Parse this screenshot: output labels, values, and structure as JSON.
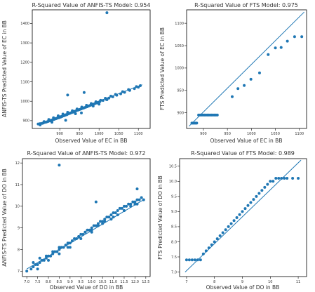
{
  "chart_data": [
    {
      "type": "scatter",
      "title": "R-Squared Value of ANFIS-TS Model: 0.954",
      "xlabel": "Observed Value of EC in BB",
      "ylabel": "ANFIS-TS Predicted Value of EC in BB",
      "xlim": [
        830,
        1130
      ],
      "ylim": [
        860,
        1470
      ],
      "xticks": [
        900,
        950,
        1000,
        1050,
        1100
      ],
      "xtick_labels": [
        "900",
        "950",
        "1000",
        "1050",
        "1100"
      ],
      "yticks": [
        900,
        1000,
        1100,
        1200,
        1300,
        1400
      ],
      "ytick_labels": [
        "900",
        "1000",
        "1100",
        "1200",
        "1300",
        "1400"
      ],
      "grid": false,
      "colors": {
        "points": "#1f77b4",
        "line": "#1f77b4"
      },
      "fit_line": {
        "x": [
          845,
          1110
        ],
        "y": [
          882,
          1085
        ]
      },
      "points": {
        "x": [
          845,
          850,
          855,
          858,
          862,
          866,
          870,
          874,
          878,
          882,
          886,
          890,
          894,
          898,
          902,
          906,
          910,
          914,
          918,
          922,
          926,
          930,
          934,
          938,
          942,
          946,
          950,
          954,
          958,
          962,
          966,
          970,
          974,
          978,
          982,
          986,
          990,
          994,
          998,
          1002,
          1010,
          1018,
          1025,
          1035,
          1045,
          1055,
          1065,
          1078,
          1090,
          1100,
          860,
          872,
          884,
          896,
          908,
          920,
          932,
          944,
          956,
          968,
          980,
          992,
          1004,
          1016,
          1030,
          1042,
          1060,
          1075,
          1095,
          1105,
          920,
          962,
          915,
          955,
          1000,
          1020,
          850,
          880,
          940,
          985
        ],
        "y": [
          883,
          885,
          886,
          888,
          891,
          893,
          896,
          899,
          902,
          904,
          907,
          910,
          913,
          915,
          918,
          922,
          925,
          928,
          931,
          935,
          938,
          941,
          944,
          948,
          951,
          954,
          957,
          960,
          963,
          966,
          969,
          972,
          976,
          979,
          982,
          985,
          988,
          991,
          994,
          998,
          1004,
          1010,
          1016,
          1023,
          1031,
          1038,
          1046,
          1056,
          1065,
          1072,
          895,
          906,
          915,
          925,
          934,
          943,
          951,
          960,
          970,
          979,
          988,
          997,
          1005,
          1015,
          1026,
          1035,
          1049,
          1060,
          1075,
          1080,
          1032,
          1045,
          902,
          940,
          985,
          1008,
          878,
          892,
          936,
          975
        ],
        "outliers": {
          "x": [
            1020
          ],
          "y": [
            1455
          ]
        }
      }
    },
    {
      "type": "scatter",
      "title": "R-Squared Value of FTS Model: 0.975",
      "xlabel": "Observed Value of EC in BB",
      "ylabel": "FTS Predicted Value of EC in BB",
      "xlim": [
        865,
        1115
      ],
      "ylim": [
        865,
        1130
      ],
      "xticks": [
        900,
        950,
        1000,
        1050,
        1100
      ],
      "xtick_labels": [
        "900",
        "950",
        "1000",
        "1050",
        "1100"
      ],
      "yticks": [
        900,
        950,
        1000,
        1050,
        1100
      ],
      "ytick_labels": [
        "900",
        "950",
        "1000",
        "1050",
        "1100"
      ],
      "grid": false,
      "colors": {
        "points": "#1f77b4",
        "line": "#1f77b4"
      },
      "fit_line": {
        "x": [
          870,
          1110
        ],
        "y": [
          870,
          1125
        ]
      },
      "points": {
        "x": [
          876,
          878,
          880,
          882,
          884,
          886,
          890,
          893,
          896,
          899,
          902,
          905,
          908,
          911,
          914,
          917,
          920,
          923,
          926,
          929,
          960,
          972,
          985,
          999,
          1017,
          1035,
          1050,
          1062,
          1075,
          1090,
          1105
        ],
        "y": [
          877,
          877,
          877,
          877,
          877,
          877,
          895,
          895,
          895,
          895,
          895,
          895,
          895,
          895,
          895,
          895,
          895,
          895,
          895,
          895,
          936,
          954,
          961,
          975,
          989,
          1030,
          1045,
          1046,
          1060,
          1070,
          1070
        ]
      }
    },
    {
      "type": "scatter",
      "title": "R-Squared Value of ANFIS-TS Model: 0.972",
      "xlabel": "Observed Value of DO in BB",
      "ylabel": "ANFIS-TS Predicted Value of DO in BB",
      "xlim": [
        6.8,
        12.7
      ],
      "ylim": [
        6.75,
        12.2
      ],
      "xticks": [
        7.0,
        7.5,
        8.0,
        8.5,
        9.0,
        9.5,
        10.0,
        10.5,
        11.0,
        11.5,
        12.0,
        12.5
      ],
      "xtick_labels": [
        "7.0",
        "7.5",
        "8.0",
        "8.5",
        "9.0",
        "9.5",
        "10.0",
        "10.5",
        "11.0",
        "11.5",
        "12.0",
        "12.5"
      ],
      "yticks": [
        7,
        8,
        9,
        10,
        11,
        12
      ],
      "ytick_labels": [
        "7",
        "8",
        "9",
        "10",
        "11",
        "12"
      ],
      "grid": false,
      "colors": {
        "points": "#1f77b4",
        "line": "#1f77b4"
      },
      "fit_line": {
        "x": [
          7.0,
          12.4
        ],
        "y": [
          7.1,
          10.3
        ]
      },
      "points": {
        "x": [
          7.0,
          7.2,
          7.3,
          7.4,
          7.5,
          7.6,
          7.7,
          7.8,
          7.9,
          8.0,
          8.1,
          8.2,
          8.3,
          8.4,
          8.5,
          8.6,
          8.7,
          8.8,
          8.9,
          9.0,
          9.1,
          9.2,
          9.3,
          9.4,
          9.5,
          9.6,
          9.7,
          9.8,
          9.9,
          10.0,
          10.1,
          10.2,
          10.3,
          10.4,
          10.5,
          10.6,
          10.7,
          10.8,
          10.9,
          11.0,
          11.1,
          11.2,
          11.3,
          11.4,
          11.5,
          11.6,
          11.7,
          11.8,
          11.9,
          12.0,
          12.1,
          12.2,
          12.3,
          12.4,
          7.3,
          7.6,
          7.9,
          8.2,
          8.5,
          8.8,
          9.1,
          9.4,
          9.7,
          10.0,
          10.3,
          10.6,
          10.9,
          11.2,
          11.5,
          11.8,
          12.1,
          7.5,
          8.0,
          8.5,
          9.0,
          9.5,
          10.0,
          10.5,
          11.0,
          11.5,
          12.0
        ],
        "y": [
          7.0,
          7.1,
          7.2,
          7.3,
          7.3,
          7.4,
          7.5,
          7.5,
          7.6,
          7.7,
          7.7,
          7.8,
          7.9,
          7.9,
          8.0,
          8.1,
          8.1,
          8.2,
          8.3,
          8.3,
          8.4,
          8.5,
          8.5,
          8.6,
          8.7,
          8.7,
          8.8,
          8.9,
          8.9,
          9.0,
          9.1,
          9.1,
          9.2,
          9.3,
          9.3,
          9.4,
          9.5,
          9.5,
          9.6,
          9.7,
          9.7,
          9.8,
          9.9,
          9.9,
          10.0,
          10.0,
          10.1,
          10.1,
          10.2,
          10.2,
          10.3,
          10.3,
          10.4,
          10.3,
          7.4,
          7.6,
          7.7,
          7.9,
          8.1,
          8.2,
          8.4,
          8.6,
          8.8,
          8.9,
          9.1,
          9.3,
          9.4,
          9.6,
          9.8,
          10.0,
          10.1,
          7.1,
          7.5,
          7.8,
          8.1,
          8.5,
          8.8,
          9.2,
          9.5,
          9.8,
          10.1
        ],
        "outliers": {
          "x": [
            8.5,
            12.1,
            10.2,
            8.9
          ],
          "y": [
            11.9,
            10.8,
            10.2,
            8.1
          ]
        }
      }
    },
    {
      "type": "scatter",
      "title": "R-Squared Value of FTS Model: 0.989",
      "xlabel": "Observed Value of DO in BB",
      "ylabel": "FTS Predicted Value of DO in BB",
      "xlim": [
        6.75,
        11.3
      ],
      "ylim": [
        6.85,
        10.75
      ],
      "xticks": [
        7,
        8,
        9,
        10,
        11
      ],
      "xtick_labels": [
        "7",
        "8",
        "9",
        "10",
        "11"
      ],
      "yticks": [
        7.0,
        7.5,
        8.0,
        8.5,
        9.0,
        9.5,
        10.0,
        10.5
      ],
      "ytick_labels": [
        "7.0",
        "7.5",
        "8.0",
        "8.5",
        "9.0",
        "9.5",
        "10.0",
        "10.5"
      ],
      "grid": false,
      "colors": {
        "points": "#1f77b4",
        "line": "#1f77b4"
      },
      "fit_line": {
        "x": [
          6.95,
          11.1
        ],
        "y": [
          7.0,
          10.7
        ]
      },
      "points": {
        "x": [
          7.0,
          7.1,
          7.2,
          7.3,
          7.4,
          7.5,
          7.6,
          7.7,
          7.8,
          7.9,
          8.0,
          8.1,
          8.2,
          8.3,
          8.4,
          8.5,
          8.6,
          8.7,
          8.8,
          8.9,
          9.0,
          9.1,
          9.2,
          9.3,
          9.4,
          9.5,
          9.6,
          9.7,
          9.8,
          9.9,
          10.0,
          10.1,
          10.2,
          10.3,
          10.4,
          10.5,
          10.6,
          10.8,
          11.0
        ],
        "y": [
          7.4,
          7.4,
          7.4,
          7.4,
          7.4,
          7.4,
          7.6,
          7.7,
          7.8,
          7.9,
          8.0,
          8.1,
          8.2,
          8.3,
          8.4,
          8.5,
          8.6,
          8.7,
          8.8,
          8.9,
          9.0,
          9.1,
          9.2,
          9.3,
          9.4,
          9.5,
          9.6,
          9.7,
          9.8,
          9.9,
          10.0,
          10.0,
          10.1,
          10.1,
          10.1,
          10.1,
          10.1,
          10.1,
          10.1
        ]
      }
    }
  ]
}
